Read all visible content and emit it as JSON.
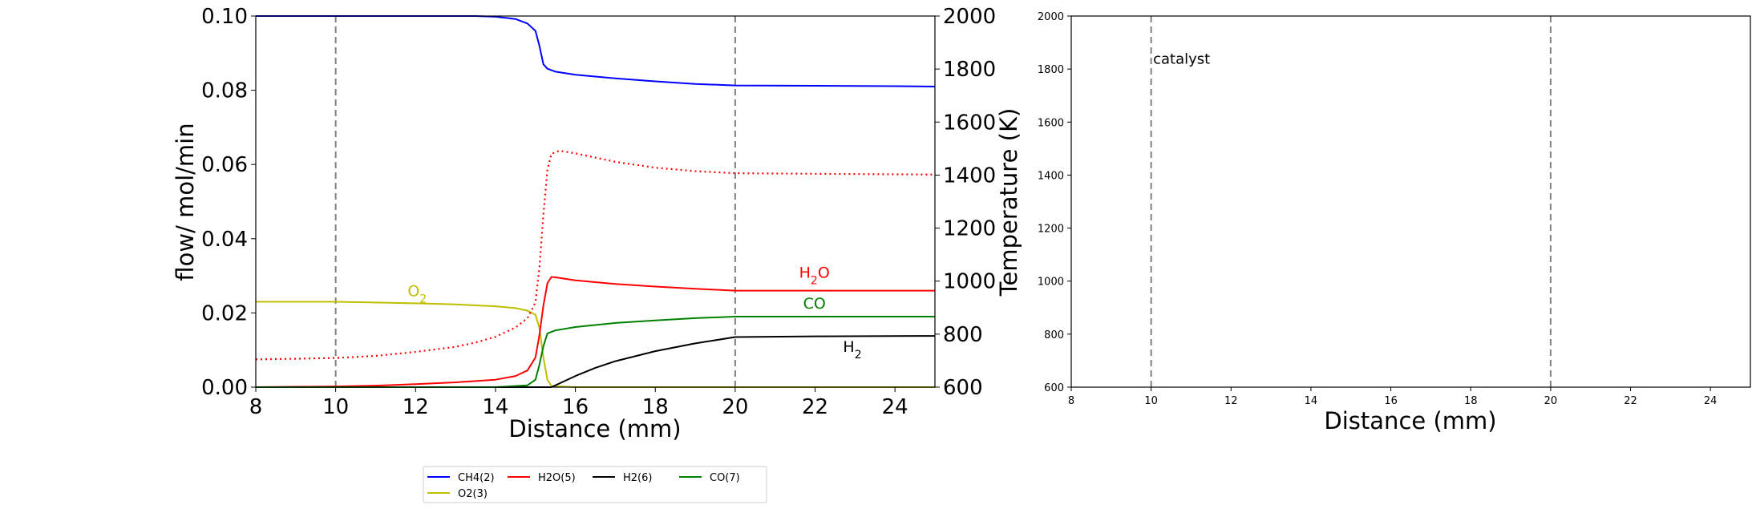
{
  "chart_data": [
    {
      "type": "line",
      "xlabel": "Distance (mm)",
      "ylabel": "flow/ mol/min",
      "y2label": "Temperature (K)",
      "xlim": [
        8,
        25
      ],
      "ylim": [
        0,
        0.1
      ],
      "y2lim": [
        600,
        2000
      ],
      "x_ticks": [
        8,
        10,
        12,
        14,
        16,
        18,
        20,
        22,
        24
      ],
      "y_ticks": [
        0.0,
        0.02,
        0.04,
        0.06,
        0.08,
        0.1
      ],
      "y_tick_labels": [
        "0.00",
        "0.02",
        "0.04",
        "0.06",
        "0.08",
        "0.10"
      ],
      "y2_ticks": [
        600,
        800,
        1000,
        1200,
        1400,
        1600,
        1800,
        2000
      ],
      "vlines": [
        10,
        20
      ],
      "grid": false,
      "series": [
        {
          "name": "CH4(2)",
          "color": "#0000ff",
          "style": "solid",
          "x": [
            8,
            10,
            12,
            13,
            13.5,
            14,
            14.5,
            14.8,
            15.0,
            15.1,
            15.2,
            15.3,
            15.5,
            16,
            17,
            18,
            19,
            20,
            22,
            24,
            25
          ],
          "y": [
            0.1,
            0.1,
            0.1,
            0.1,
            0.1,
            0.0998,
            0.0992,
            0.098,
            0.096,
            0.092,
            0.087,
            0.0858,
            0.085,
            0.0842,
            0.0832,
            0.0824,
            0.0817,
            0.0813,
            0.0812,
            0.0811,
            0.081
          ]
        },
        {
          "name": "O2(3)",
          "color": "#bfbf00",
          "style": "solid",
          "x": [
            8,
            10,
            11,
            12,
            13,
            14,
            14.5,
            14.8,
            15.0,
            15.1,
            15.2,
            15.3,
            15.4,
            16,
            20,
            25
          ],
          "y": [
            0.023,
            0.023,
            0.0228,
            0.0226,
            0.0223,
            0.0218,
            0.0213,
            0.0206,
            0.0195,
            0.016,
            0.008,
            0.002,
            0.0003,
            0,
            0,
            0
          ]
        },
        {
          "name": "H2O(5)",
          "color": "#ff0000",
          "style": "solid",
          "x": [
            8,
            10,
            11,
            12,
            13,
            14,
            14.5,
            14.8,
            15.0,
            15.1,
            15.2,
            15.3,
            15.4,
            15.5,
            16,
            17,
            18,
            19,
            20,
            22,
            25
          ],
          "y": [
            0,
            0.0002,
            0.0004,
            0.0008,
            0.0013,
            0.002,
            0.003,
            0.0045,
            0.008,
            0.014,
            0.022,
            0.028,
            0.0297,
            0.0296,
            0.0288,
            0.0278,
            0.0271,
            0.0265,
            0.026,
            0.026,
            0.026
          ]
        },
        {
          "name": "H2(6)",
          "color": "#000000",
          "style": "solid",
          "x": [
            8,
            15,
            15.4,
            15.6,
            16,
            16.5,
            17,
            18,
            19,
            20,
            22,
            25
          ],
          "y": [
            0,
            0,
            0,
            0.001,
            0.003,
            0.0052,
            0.007,
            0.0097,
            0.0118,
            0.0135,
            0.0137,
            0.0138
          ]
        },
        {
          "name": "CO(7)",
          "color": "#008000",
          "style": "solid",
          "x": [
            8,
            14,
            14.8,
            15.0,
            15.1,
            15.2,
            15.3,
            15.5,
            16,
            17,
            18,
            19,
            20,
            22,
            25
          ],
          "y": [
            0,
            0,
            0.0005,
            0.002,
            0.006,
            0.011,
            0.0145,
            0.0153,
            0.0162,
            0.0173,
            0.018,
            0.0186,
            0.019,
            0.019,
            0.019
          ]
        },
        {
          "name": "",
          "axis": "y2",
          "color": "#ff0000",
          "style": "dotted",
          "x": [
            8,
            9,
            10,
            11,
            12,
            13,
            13.5,
            14,
            14.5,
            14.8,
            15.0,
            15.1,
            15.2,
            15.3,
            15.4,
            15.6,
            16,
            17,
            18,
            19,
            20,
            22,
            25
          ],
          "y": [
            705,
            707,
            710,
            718,
            733,
            752,
            768,
            790,
            825,
            860,
            920,
            1050,
            1250,
            1420,
            1480,
            1492,
            1482,
            1450,
            1428,
            1415,
            1407,
            1405,
            1402
          ]
        }
      ],
      "annotations": [
        {
          "text": "O",
          "sub": "2",
          "x": 11.8,
          "y": 0.0245,
          "color": "#bfbf00"
        },
        {
          "text": "H",
          "sub": "2",
          "text2": "O",
          "x": 21.6,
          "y": 0.0295,
          "color": "#ff0000"
        },
        {
          "text": "CO",
          "x": 21.7,
          "y": 0.0212,
          "color": "#008000"
        },
        {
          "text": "H",
          "sub": "2",
          "x": 22.7,
          "y": 0.0095,
          "color": "#000000"
        }
      ]
    },
    {
      "type": "line",
      "xlabel": "Distance (mm)",
      "ylabel": "",
      "xlim": [
        8,
        25
      ],
      "ylim": [
        600,
        2000
      ],
      "x_ticks": [
        8,
        10,
        12,
        14,
        16,
        18,
        20,
        22,
        24
      ],
      "y_ticks": [
        600,
        800,
        1000,
        1200,
        1400,
        1600,
        1800,
        2000
      ],
      "vlines": [
        10,
        20
      ],
      "grid": false,
      "series": [],
      "annotations": [
        {
          "text": "catalyst",
          "x": 10.05,
          "y": 1820,
          "color": "#000000"
        }
      ]
    }
  ],
  "legend": {
    "placement": "bottom-center",
    "items": [
      {
        "label": "CH4(2)",
        "color": "#0000ff"
      },
      {
        "label": "H2O(5)",
        "color": "#ff0000"
      },
      {
        "label": "H2(6)",
        "color": "#000000"
      },
      {
        "label": "CO(7)",
        "color": "#008000"
      },
      {
        "label": "O2(3)",
        "color": "#bfbf00"
      }
    ]
  }
}
